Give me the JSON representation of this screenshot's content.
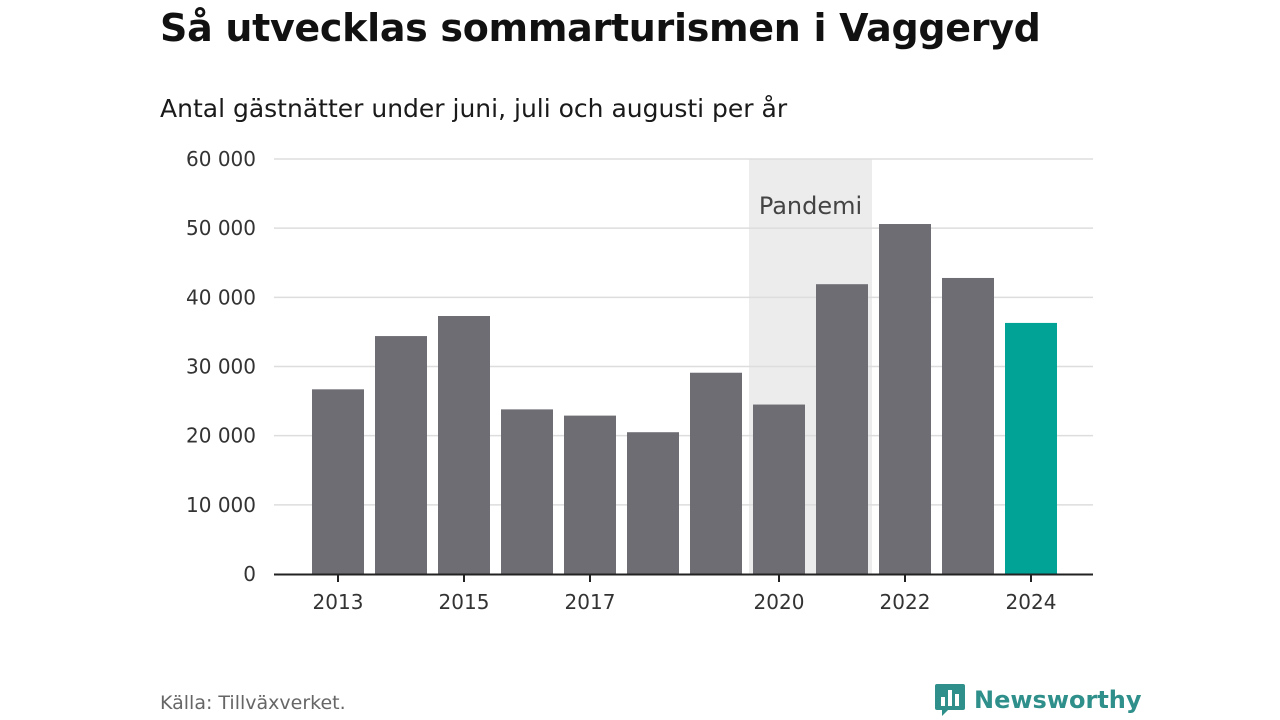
{
  "header": {
    "title": "Så utvecklas sommarturismen i Vaggeryd",
    "subtitle": "Antal gästnätter under juni, juli och augusti per år"
  },
  "footer": {
    "source": "Källa: Tillväxverket.",
    "brand": "Newsworthy"
  },
  "colors": {
    "bar": "#6e6d73",
    "highlight": "#00a396",
    "band": "#ececec",
    "grid": "#dddddd",
    "brand": "#2f8f8a"
  },
  "chart_data": {
    "type": "bar",
    "title": "Så utvecklas sommarturismen i Vaggeryd",
    "subtitle": "Antal gästnätter under juni, juli och augusti per år",
    "categories": [
      "2013",
      "2014",
      "2015",
      "2016",
      "2017",
      "2018",
      "2019",
      "2020",
      "2021",
      "2022",
      "2023",
      "2024"
    ],
    "values": [
      26700,
      34400,
      37300,
      23800,
      22900,
      20500,
      29100,
      24500,
      41900,
      50600,
      42800,
      36300
    ],
    "x_tick_labels": [
      "2013",
      "2015",
      "2017",
      "2020",
      "2022",
      "2024"
    ],
    "highlight_category": "2024",
    "ylim": [
      0,
      60000
    ],
    "y_ticks": [
      0,
      10000,
      20000,
      30000,
      40000,
      50000,
      60000
    ],
    "y_tick_labels": [
      "0",
      "10 000",
      "20 000",
      "30 000",
      "40 000",
      "50 000",
      "60 000"
    ],
    "grid": true,
    "annotations": [
      {
        "type": "band",
        "label": "Pandemi",
        "from": "2020",
        "to": "2021"
      }
    ]
  }
}
